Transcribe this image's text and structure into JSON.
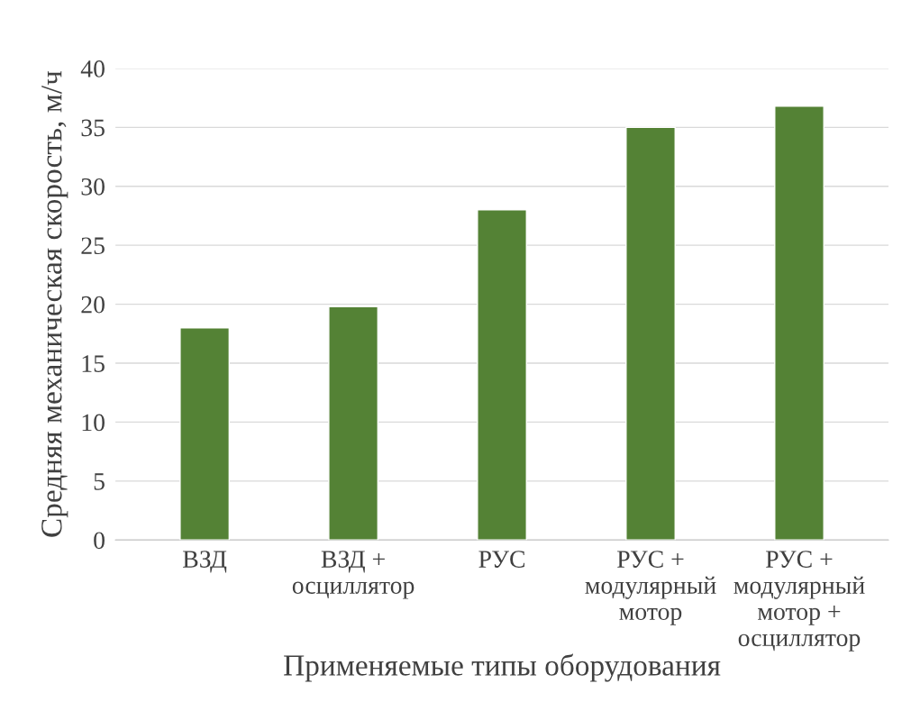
{
  "chart_data": {
    "type": "bar",
    "xlabel": "Применяемые типы оборудования",
    "ylabel": "Средняя механическая скорость, м/ч",
    "categories": [
      "ВЗД",
      "ВЗД +\nосциллятор",
      "РУС",
      "РУС +\nмодулярный\nмотор",
      "РУС +\nмодулярный\nмотор +\nосциллятор"
    ],
    "values": [
      18,
      19.8,
      28,
      35,
      36.8
    ],
    "color": "#548235",
    "ylim": [
      0,
      40
    ],
    "yticks": [
      0,
      5,
      10,
      15,
      20,
      25,
      30,
      35,
      40
    ],
    "grid": "y"
  }
}
